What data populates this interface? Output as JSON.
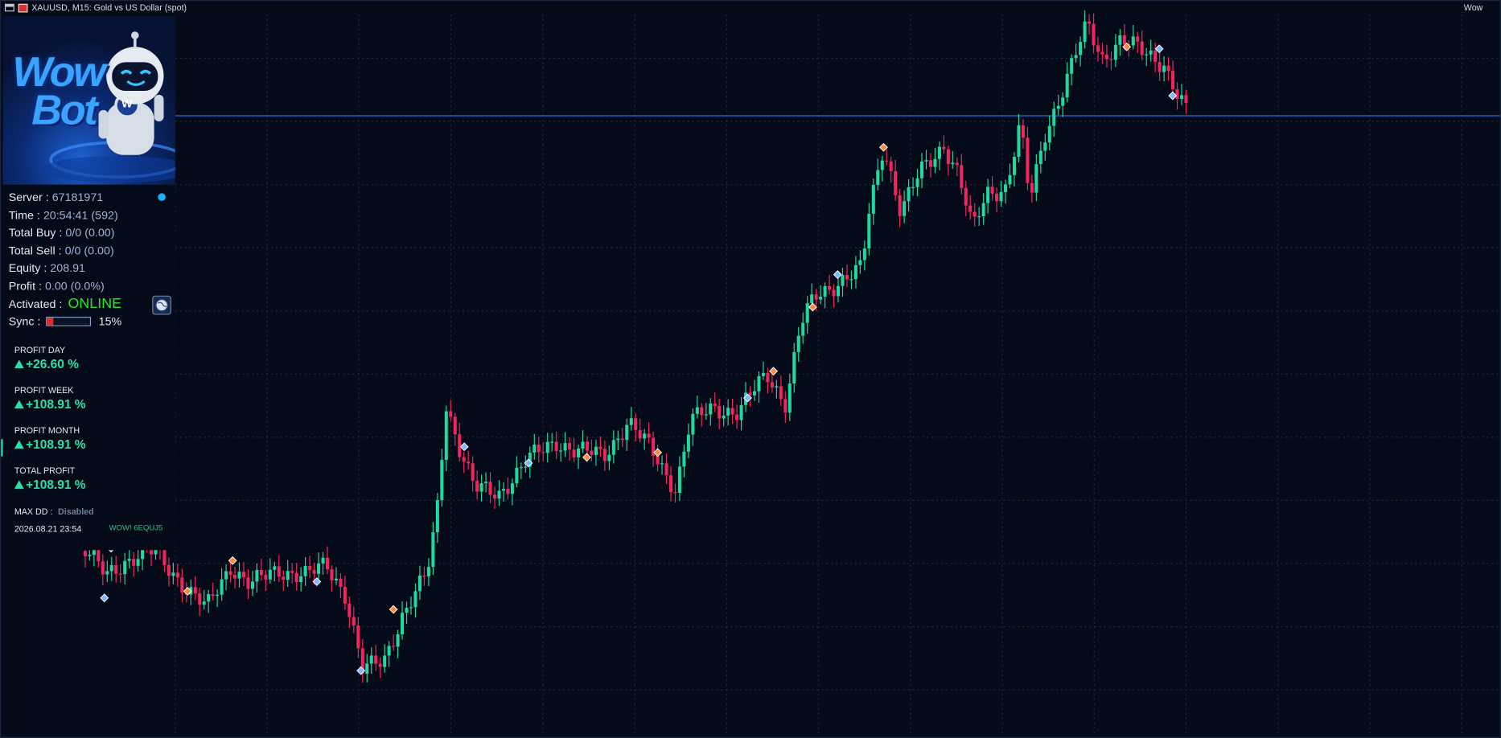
{
  "window_title": "XAUUSD, M15:  Gold vs US Dollar (spot)",
  "top_right": "Wow",
  "logo": {
    "line1": "Wow",
    "line2": "Bot",
    "badge": "W"
  },
  "info": [
    {
      "label": "Server : ",
      "value": "67181971"
    },
    {
      "label": "Time : ",
      "value": "20:54:41 (592)"
    },
    {
      "label": "Total Buy : ",
      "value": "0/0 (0.00)"
    },
    {
      "label": "Total Sell : ",
      "value": "0/0 (0.00)"
    },
    {
      "label": "Equity : ",
      "value": "208.91"
    },
    {
      "label": "Profit : ",
      "value": "0.00 (0.0%)"
    }
  ],
  "activated": {
    "label": "Activated :",
    "status": "ONLINE"
  },
  "sync": {
    "label": "Sync :",
    "progress": {
      "value": 15,
      "label": "15%"
    }
  },
  "stats": [
    {
      "label": "PROFIT DAY",
      "value": "+26.60 %"
    },
    {
      "label": "PROFIT WEEK",
      "value": "+108.91 %"
    },
    {
      "label": "PROFIT MONTH",
      "value": "+108.91 %"
    },
    {
      "label": "TOTAL PROFIT",
      "value": "+108.91 %"
    }
  ],
  "max_dd": {
    "label": "MAX DD :",
    "value": "Disabled"
  },
  "timestamp": "2026.08.21 23:54",
  "chart_tag": "WOW! 6EQUJ5"
}
